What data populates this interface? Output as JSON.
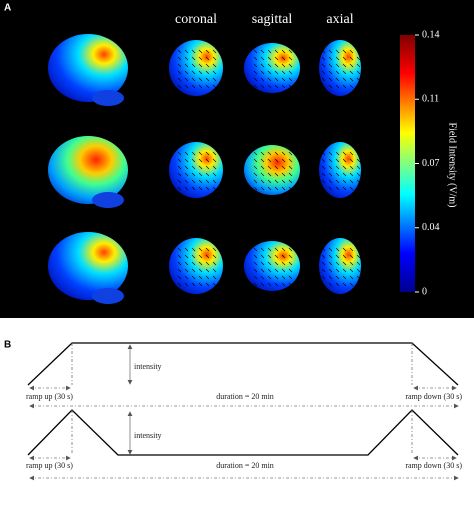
{
  "panel_a": {
    "label": "A",
    "views": [
      "coronal",
      "sagittal",
      "axial"
    ],
    "colorbar": {
      "title": "Field Intensity (V/m)",
      "range": [
        0,
        0.14
      ],
      "ticks": [
        0,
        {
          "value": 0.035,
          "label": "0.04"
        },
        0.07,
        {
          "value": 0.105,
          "label": "0.11"
        },
        0.14
      ]
    }
  },
  "panel_b": {
    "label": "B",
    "diagrams": [
      {
        "intensity": "intensity",
        "ramp_up": "ramp up (30 s)",
        "duration": "duration = 20 min",
        "ramp_down": "ramp down (30 s)"
      },
      {
        "intensity": "intensity",
        "ramp_up": "ramp up (30 s)",
        "duration": "duration = 20 min",
        "ramp_down": "ramp down (30 s)"
      }
    ]
  }
}
